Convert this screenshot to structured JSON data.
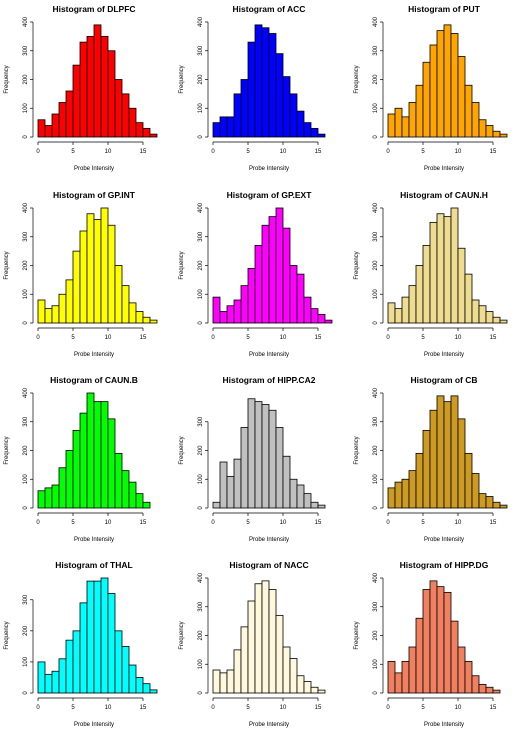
{
  "figure": {
    "columns": 3
  },
  "chart_data": [
    {
      "type": "bar",
      "title": "Histogram of DLPFC",
      "xlabel": "Probe Intensity",
      "ylabel": "Frequency",
      "bar_color": "#ff0000",
      "bin_width": 1,
      "bin_start": 0,
      "xlim": [
        0,
        16
      ],
      "ylim": [
        0,
        400
      ],
      "xticks": [
        0,
        5,
        10,
        15
      ],
      "yticks": [
        0,
        100,
        200,
        300,
        400
      ],
      "values": [
        60,
        40,
        80,
        120,
        160,
        250,
        330,
        350,
        390,
        350,
        300,
        200,
        150,
        100,
        50,
        30,
        10
      ]
    },
    {
      "type": "bar",
      "title": "Histogram of ACC",
      "xlabel": "Probe Intensity",
      "ylabel": "Frequency",
      "bar_color": "#0000ff",
      "bin_width": 1,
      "bin_start": 0,
      "xlim": [
        0,
        16
      ],
      "ylim": [
        0,
        400
      ],
      "xticks": [
        0,
        5,
        10,
        15
      ],
      "yticks": [
        0,
        100,
        200,
        300,
        400
      ],
      "values": [
        50,
        70,
        70,
        150,
        200,
        330,
        390,
        380,
        360,
        290,
        210,
        150,
        90,
        50,
        30,
        10
      ]
    },
    {
      "type": "bar",
      "title": "Histogram of PUT",
      "xlabel": "Probe Intensity",
      "ylabel": "Frequency",
      "bar_color": "#ffa500",
      "bin_width": 1,
      "bin_start": 0,
      "xlim": [
        0,
        16
      ],
      "ylim": [
        0,
        400
      ],
      "xticks": [
        0,
        5,
        10,
        15
      ],
      "yticks": [
        0,
        100,
        200,
        300,
        400
      ],
      "values": [
        80,
        100,
        70,
        120,
        180,
        260,
        320,
        370,
        390,
        360,
        280,
        180,
        120,
        60,
        40,
        20,
        10
      ]
    },
    {
      "type": "bar",
      "title": "Histogram of GP.INT",
      "xlabel": "Probe Intensity",
      "ylabel": "Frequency",
      "bar_color": "#ffff00",
      "bin_width": 1,
      "bin_start": 0,
      "xlim": [
        0,
        16
      ],
      "ylim": [
        0,
        400
      ],
      "xticks": [
        0,
        5,
        10,
        15
      ],
      "yticks": [
        0,
        100,
        200,
        300,
        400
      ],
      "values": [
        80,
        50,
        60,
        100,
        150,
        250,
        320,
        380,
        360,
        400,
        340,
        200,
        130,
        70,
        40,
        20,
        10
      ]
    },
    {
      "type": "bar",
      "title": "Histogram of GP.EXT",
      "xlabel": "Probe Intensity",
      "ylabel": "Frequency",
      "bar_color": "#ff00ff",
      "bin_width": 1,
      "bin_start": 0,
      "xlim": [
        0,
        16
      ],
      "ylim": [
        0,
        400
      ],
      "xticks": [
        0,
        5,
        10,
        15
      ],
      "yticks": [
        0,
        100,
        200,
        300,
        400
      ],
      "values": [
        90,
        40,
        60,
        80,
        130,
        190,
        270,
        340,
        370,
        400,
        330,
        200,
        170,
        90,
        50,
        30,
        10
      ]
    },
    {
      "type": "bar",
      "title": "Histogram of CAUN.H",
      "xlabel": "Probe Intensity",
      "ylabel": "Frequency",
      "bar_color": "#eedc90",
      "bin_width": 1,
      "bin_start": 0,
      "xlim": [
        0,
        16
      ],
      "ylim": [
        0,
        400
      ],
      "xticks": [
        0,
        5,
        10,
        15
      ],
      "yticks": [
        0,
        100,
        200,
        300,
        400
      ],
      "values": [
        70,
        50,
        90,
        130,
        200,
        270,
        350,
        380,
        370,
        400,
        260,
        170,
        80,
        60,
        40,
        20,
        10
      ]
    },
    {
      "type": "bar",
      "title": "Histogram of CAUN.B",
      "xlabel": "Probe Intensity",
      "ylabel": "Frequency",
      "bar_color": "#00ff00",
      "bin_width": 1,
      "bin_start": 0,
      "xlim": [
        0,
        16
      ],
      "ylim": [
        0,
        400
      ],
      "xticks": [
        0,
        5,
        10,
        15
      ],
      "yticks": [
        0,
        100,
        200,
        300,
        400
      ],
      "values": [
        60,
        70,
        80,
        140,
        200,
        270,
        330,
        400,
        370,
        370,
        310,
        190,
        130,
        90,
        50,
        20
      ]
    },
    {
      "type": "bar",
      "title": "Histogram of HIPP.CA2",
      "xlabel": "Probe Intensity",
      "ylabel": "Frequency",
      "bar_color": "#c0c0c0",
      "bin_width": 1,
      "bin_start": 0,
      "xlim": [
        0,
        16
      ],
      "ylim": [
        0,
        400
      ],
      "xticks": [
        0,
        5,
        10,
        15
      ],
      "yticks": [
        0,
        100,
        200,
        300
      ],
      "values": [
        20,
        160,
        110,
        170,
        280,
        380,
        370,
        360,
        340,
        280,
        180,
        100,
        80,
        50,
        20,
        10
      ]
    },
    {
      "type": "bar",
      "title": "Histogram of CB",
      "xlabel": "Probe Intensity",
      "ylabel": "Frequency",
      "bar_color": "#cd9a22",
      "bin_width": 1,
      "bin_start": 0,
      "xlim": [
        0,
        16
      ],
      "ylim": [
        0,
        400
      ],
      "xticks": [
        0,
        5,
        10,
        15
      ],
      "yticks": [
        0,
        100,
        200,
        300,
        400
      ],
      "values": [
        70,
        90,
        100,
        130,
        190,
        270,
        340,
        390,
        370,
        390,
        310,
        190,
        120,
        50,
        40,
        20,
        10
      ]
    },
    {
      "type": "bar",
      "title": "Histogram of THAL",
      "xlabel": "Probe Intensity",
      "ylabel": "Frequency",
      "bar_color": "#00ffff",
      "bin_width": 1,
      "bin_start": 0,
      "xlim": [
        0,
        16
      ],
      "ylim": [
        0,
        370
      ],
      "xticks": [
        0,
        5,
        10,
        15
      ],
      "yticks": [
        0,
        100,
        200,
        300
      ],
      "values": [
        100,
        60,
        70,
        110,
        170,
        200,
        290,
        360,
        360,
        370,
        320,
        200,
        150,
        90,
        50,
        30,
        10
      ]
    },
    {
      "type": "bar",
      "title": "Histogram of NACC",
      "xlabel": "Probe Intensity",
      "ylabel": "Frequency",
      "bar_color": "#fff8dc",
      "bin_width": 1,
      "bin_start": 0,
      "xlim": [
        0,
        16
      ],
      "ylim": [
        0,
        400
      ],
      "xticks": [
        0,
        5,
        10,
        15
      ],
      "yticks": [
        0,
        100,
        200,
        300,
        400
      ],
      "values": [
        80,
        70,
        80,
        150,
        230,
        320,
        380,
        390,
        360,
        270,
        160,
        120,
        60,
        40,
        20,
        10
      ]
    },
    {
      "type": "bar",
      "title": "Histogram of HIPP.DG",
      "xlabel": "Probe Intensity",
      "ylabel": "Frequency",
      "bar_color": "#f08060",
      "bin_width": 1,
      "bin_start": 0,
      "xlim": [
        0,
        16
      ],
      "ylim": [
        0,
        400
      ],
      "xticks": [
        0,
        5,
        10,
        15
      ],
      "yticks": [
        0,
        100,
        200,
        300,
        400
      ],
      "values": [
        110,
        70,
        110,
        160,
        260,
        360,
        390,
        370,
        350,
        250,
        160,
        110,
        60,
        30,
        20,
        10
      ]
    }
  ]
}
